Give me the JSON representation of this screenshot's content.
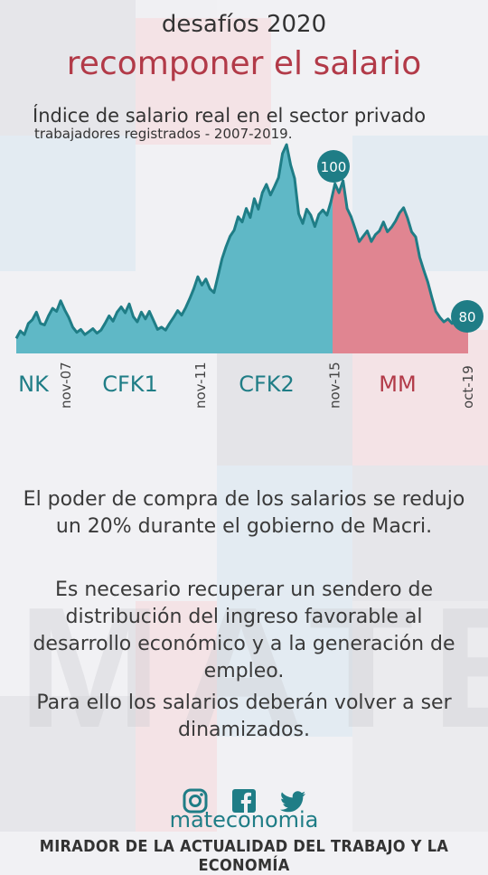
{
  "header": {
    "pre_title": "desafíos 2020",
    "title": "recomponer el salario"
  },
  "chart_data": {
    "type": "area",
    "title": "Índice de salario real en el sector privado",
    "subtitle": "trabajadores registrados -  2007-2019.",
    "x_ticks": [
      "nov-07",
      "nov-11",
      "nov-15",
      "oct-19"
    ],
    "periods": [
      {
        "label": "NK",
        "color": "#1f7d86"
      },
      {
        "label": "CFK1",
        "color": "#1f7d86"
      },
      {
        "label": "CFK2",
        "color": "#1f7d86"
      },
      {
        "label": "MM",
        "color": "#b23a48"
      }
    ],
    "annotations": [
      {
        "label": "100",
        "x": "nov-15",
        "value": 100
      },
      {
        "label": "80",
        "x": "oct-19",
        "value": 80
      }
    ],
    "series": [
      {
        "values": [
          79,
          80,
          79.5,
          81,
          81.5,
          82.5,
          81,
          80.8,
          82,
          83,
          82.6,
          84,
          82.8,
          81.8,
          80.5,
          79.8,
          80.2,
          79.5,
          79.9,
          80.3,
          79.7,
          80.1,
          81,
          82,
          81.3,
          82.5,
          83.2,
          82.4,
          83.6,
          81.9,
          81.2,
          82.5,
          81.6,
          82.6,
          81.4,
          80.2,
          80.5,
          80.1,
          81,
          81.8,
          82.7,
          82.1,
          83.1,
          84.3,
          85.6,
          87.2,
          86.1,
          86.9,
          85.6,
          85.1,
          87.3,
          89.6,
          91.2,
          92.6,
          93.4,
          95.2,
          94.5,
          96.3,
          95.1,
          97.6,
          96.2,
          98.4,
          99.5,
          98.1,
          99.2,
          100.4,
          103.6,
          104.8,
          102.1,
          100.3,
          95.6,
          94.3,
          96.2,
          95.4,
          93.9,
          95.5,
          96.1,
          95.4,
          97.2,
          99.6,
          98.4,
          100,
          96.3,
          95.2,
          93.6,
          91.9,
          92.6,
          93.3,
          91.9,
          92.8,
          93.3,
          94.5,
          93.2,
          93.8,
          94.6,
          95.7,
          96.4,
          95,
          93.2,
          92.5,
          89.8,
          88.1,
          86.5,
          84.5,
          82.6,
          81.8,
          81.2,
          81.6,
          81,
          81.2,
          80.3,
          80.8,
          80
        ]
      }
    ],
    "ylim": [
      77,
      106
    ],
    "colors": {
      "pre": "#5fb8c6",
      "post": "#e08591",
      "line": "#1f7d86"
    }
  },
  "paragraphs": [
    "El poder de compra de los salarios se redujo un 20% durante el gobierno de Macri.",
    "Es necesario recuperar un sendero de distribución del ingreso favorable al desarrollo económico y a la generación de empleo.",
    "Para ello los salarios deberán volver a ser dinamizados."
  ],
  "social": {
    "icons": [
      "instagram-icon",
      "facebook-icon",
      "twitter-icon"
    ],
    "handle": "mateconomia"
  },
  "footer": "MIRADOR DE LA ACTUALIDAD DEL TRABAJO Y LA ECONOMÍA"
}
